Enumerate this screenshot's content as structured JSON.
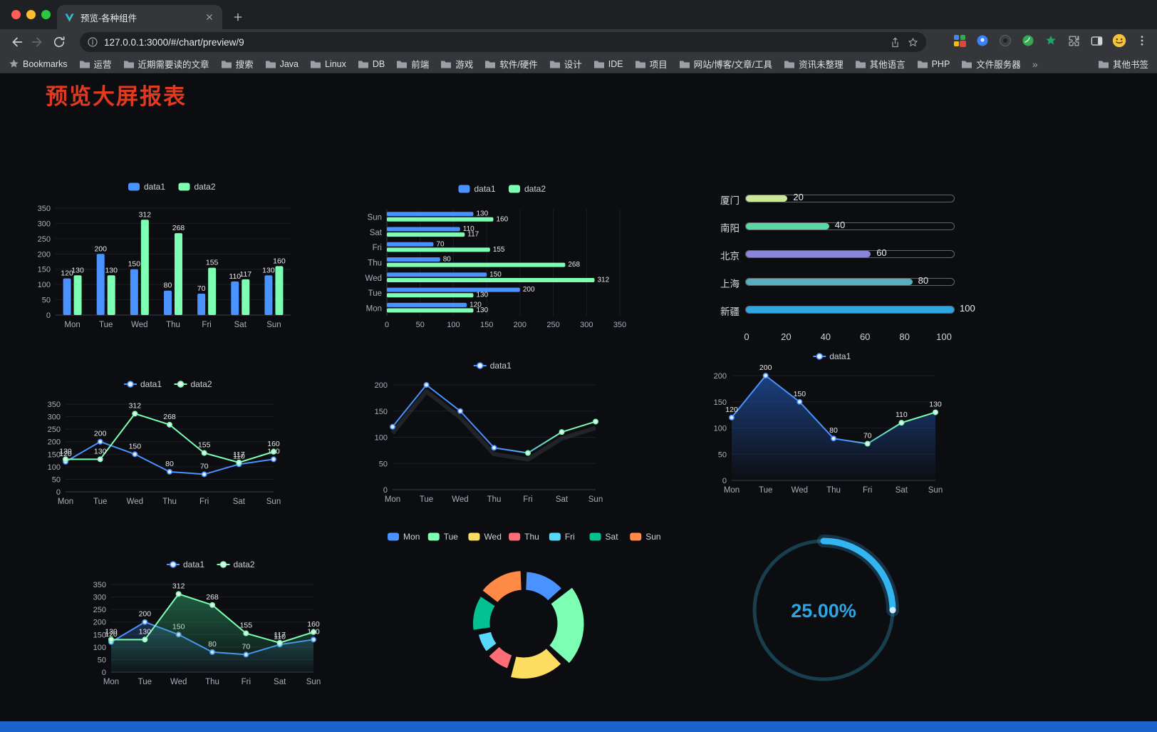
{
  "browser": {
    "tab_title": "预览-各种组件",
    "url": "127.0.0.1:3000/#/chart/preview/9",
    "bookmarks_label": "Bookmarks",
    "bookmarks": [
      "运营",
      "近期需要读的文章",
      "搜索",
      "Java",
      "Linux",
      "DB",
      "前端",
      "游戏",
      "软件/硬件",
      "设计",
      "IDE",
      "项目",
      "网站/博客/文章/工具",
      "资讯未整理",
      "其他语言",
      "PHP",
      "文件服务器"
    ],
    "bookmarks_overflow": "»",
    "other_bookmarks": "其他书签"
  },
  "page": {
    "title": "预览大屏报表",
    "title_color": "#e13a20",
    "footer_color": "#1a63cb"
  },
  "chart_data": [
    {
      "id": "bar",
      "type": "bar",
      "categories": [
        "Mon",
        "Tue",
        "Wed",
        "Thu",
        "Fri",
        "Sat",
        "Sun"
      ],
      "series": [
        {
          "name": "data1",
          "color": "#4992ff",
          "values": [
            120,
            200,
            150,
            80,
            70,
            110,
            130
          ]
        },
        {
          "name": "data2",
          "color": "#7cffb2",
          "values": [
            130,
            130,
            312,
            268,
            155,
            117,
            160
          ]
        }
      ],
      "ylim": [
        0,
        350
      ],
      "ystep": 50
    },
    {
      "id": "hbar",
      "type": "bar-horizontal",
      "categories": [
        "Mon",
        "Tue",
        "Wed",
        "Thu",
        "Fri",
        "Sat",
        "Sun"
      ],
      "series": [
        {
          "name": "data1",
          "color": "#4992ff",
          "values": [
            120,
            200,
            150,
            80,
            70,
            110,
            130
          ]
        },
        {
          "name": "data2",
          "color": "#7cffb2",
          "values": [
            130,
            130,
            312,
            268,
            155,
            117,
            160
          ]
        }
      ],
      "xlim": [
        0,
        350
      ],
      "xstep": 50
    },
    {
      "id": "progress",
      "type": "progress",
      "max": 100,
      "axis": [
        0,
        20,
        40,
        60,
        80,
        100
      ],
      "rows": [
        {
          "label": "厦门",
          "value": 20,
          "color": "#cde79a"
        },
        {
          "label": "南阳",
          "value": 40,
          "color": "#58d9a3"
        },
        {
          "label": "北京",
          "value": 60,
          "color": "#8a85d9"
        },
        {
          "label": "上海",
          "value": 80,
          "color": "#57aebe"
        },
        {
          "label": "新疆",
          "value": 100,
          "color": "#2fa6e0"
        }
      ]
    },
    {
      "id": "line2",
      "type": "line",
      "categories": [
        "Mon",
        "Tue",
        "Wed",
        "Thu",
        "Fri",
        "Sat",
        "Sun"
      ],
      "labels": true,
      "ylim": [
        0,
        350
      ],
      "ystep": 50,
      "series": [
        {
          "name": "data1",
          "color": "#4992ff",
          "values": [
            120,
            200,
            150,
            80,
            70,
            110,
            130
          ]
        },
        {
          "name": "data2",
          "color": "#7cffb2",
          "values": [
            130,
            130,
            312,
            268,
            155,
            117,
            160
          ]
        }
      ]
    },
    {
      "id": "lineG",
      "type": "line",
      "categories": [
        "Mon",
        "Tue",
        "Wed",
        "Thu",
        "Fri",
        "Sat",
        "Sun"
      ],
      "labels": false,
      "shadow": true,
      "ylim": [
        0,
        200
      ],
      "ystep": 50,
      "series": [
        {
          "name": "data1",
          "gradient": [
            "#4992ff",
            "#7cffb2"
          ],
          "values": [
            120,
            200,
            150,
            80,
            70,
            110,
            130
          ]
        }
      ]
    },
    {
      "id": "area1",
      "type": "line",
      "categories": [
        "Mon",
        "Tue",
        "Wed",
        "Thu",
        "Fri",
        "Sat",
        "Sun"
      ],
      "labels": true,
      "ylim": [
        0,
        200
      ],
      "ystep": 50,
      "series": [
        {
          "name": "data1",
          "gradient": [
            "#4992ff",
            "#7cffb2"
          ],
          "area": [
            "rgba(30,72,145,0.85)",
            "rgba(30,72,145,0.02)"
          ],
          "values": [
            120,
            200,
            150,
            80,
            70,
            110,
            130
          ]
        }
      ]
    },
    {
      "id": "lineA2",
      "type": "line",
      "categories": [
        "Mon",
        "Tue",
        "Wed",
        "Thu",
        "Fri",
        "Sat",
        "Sun"
      ],
      "labels": true,
      "ylim": [
        0,
        350
      ],
      "ystep": 50,
      "series": [
        {
          "name": "data1",
          "color": "#4992ff",
          "area": [
            "rgba(73,146,255,0.25)",
            "rgba(73,146,255,0.02)"
          ],
          "values": [
            120,
            200,
            150,
            80,
            70,
            110,
            130
          ]
        },
        {
          "name": "data2",
          "color": "#7cffb2",
          "area": [
            "rgba(55,185,125,0.45)",
            "rgba(55,185,125,0.03)"
          ],
          "values": [
            130,
            130,
            312,
            268,
            155,
            117,
            160
          ]
        }
      ]
    },
    {
      "id": "pie",
      "type": "pie",
      "rose": true,
      "items": [
        {
          "label": "Mon",
          "value": 120,
          "color": "#4992ff"
        },
        {
          "label": "Tue",
          "value": 200,
          "color": "#7cffb2"
        },
        {
          "label": "Wed",
          "value": 150,
          "color": "#fddd60"
        },
        {
          "label": "Thu",
          "value": 80,
          "color": "#ff6e76"
        },
        {
          "label": "Fri",
          "value": 70,
          "color": "#58d9f9"
        },
        {
          "label": "Sat",
          "value": 110,
          "color": "#05c091"
        },
        {
          "label": "Sun",
          "value": 130,
          "color": "#ff8a45"
        }
      ]
    },
    {
      "id": "gauge",
      "type": "gauge",
      "value": 25,
      "display": "25.00%",
      "track_color": "#173f4e",
      "bar_color": "#33b5f2",
      "text_color": "#2ea5e2"
    }
  ]
}
